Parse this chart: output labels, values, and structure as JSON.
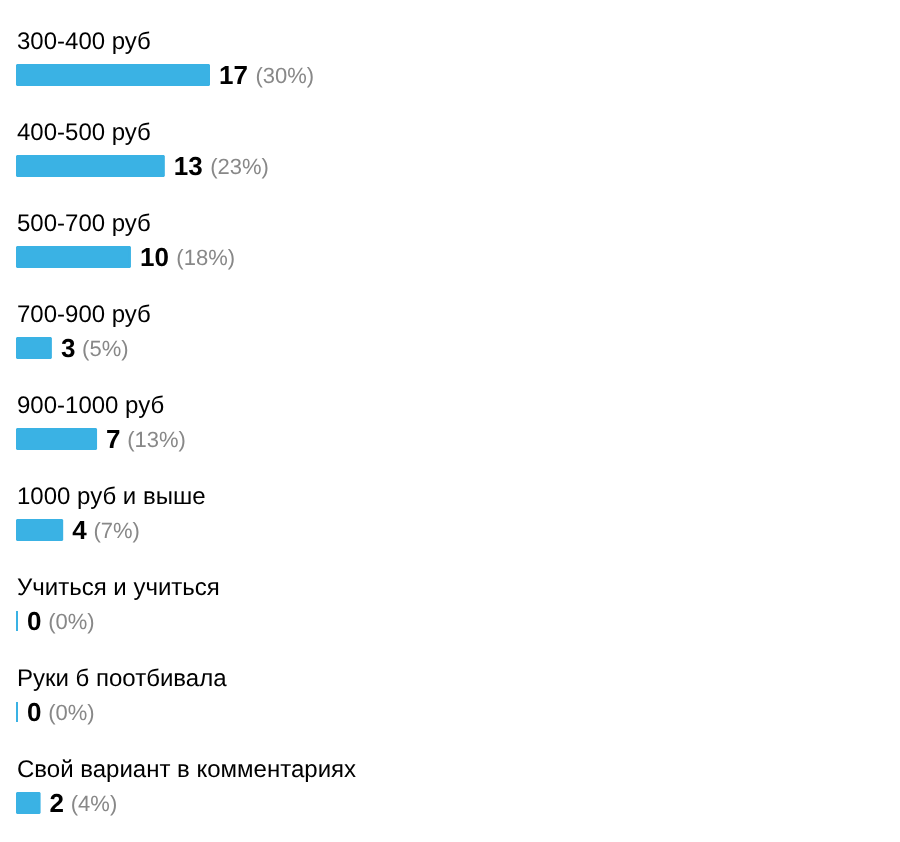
{
  "chart_data": {
    "type": "bar",
    "orientation": "horizontal",
    "categories": [
      "300-400 руб",
      "400-500 руб",
      "500-700 руб",
      "700-900 руб",
      "900-1000 руб",
      "1000 руб и выше",
      "Учиться и учиться",
      "Руки б поотбивала",
      "Свой вариант в комментариях"
    ],
    "values": [
      17,
      13,
      10,
      3,
      7,
      4,
      0,
      0,
      2
    ],
    "color": "#3ab2e4",
    "value_labels": [
      "17 (30%)",
      "13 (23%)",
      "10 (18%)",
      "3 (5%)",
      "7 (13%)",
      "4 (7%)",
      "0 (0%)",
      "0 (0%)",
      "2 (4%)"
    ]
  }
}
